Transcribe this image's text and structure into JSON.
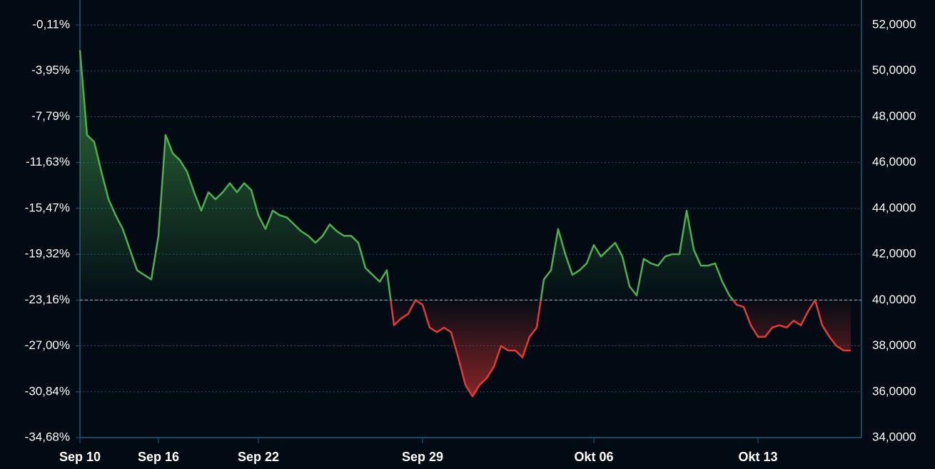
{
  "chart_data": {
    "type": "baseline-area",
    "categories": [
      "Sep 10",
      null,
      null,
      null,
      null,
      null,
      null,
      null,
      null,
      null,
      null,
      "Sep 16",
      null,
      null,
      null,
      null,
      null,
      null,
      null,
      null,
      null,
      null,
      null,
      null,
      null,
      "Sep 22",
      null,
      null,
      null,
      null,
      null,
      null,
      null,
      null,
      null,
      null,
      null,
      null,
      null,
      null,
      null,
      null,
      null,
      null,
      null,
      null,
      null,
      null,
      "Sep 29",
      null,
      null,
      null,
      null,
      null,
      null,
      null,
      null,
      null,
      null,
      null,
      null,
      null,
      null,
      null,
      null,
      null,
      null,
      null,
      null,
      null,
      null,
      null,
      "Okt 06",
      null,
      null,
      null,
      null,
      null,
      null,
      null,
      null,
      null,
      null,
      null,
      null,
      null,
      null,
      null,
      null,
      null,
      null,
      null,
      null,
      null,
      null,
      "Okt 13",
      null,
      null,
      null,
      null,
      null,
      null,
      null,
      null,
      null,
      null,
      null,
      null,
      null
    ],
    "series": [
      {
        "axis": "y2",
        "color_above": "#4caf50",
        "color_below": "#e53935",
        "values": [
          50.9,
          47.2,
          46.9,
          45.6,
          44.4,
          43.7,
          43.1,
          42.2,
          41.3,
          41.1,
          40.9,
          42.8,
          47.2,
          46.4,
          46.1,
          45.6,
          44.7,
          43.9,
          44.7,
          44.4,
          44.7,
          45.1,
          44.7,
          45.1,
          44.8,
          43.7,
          43.1,
          43.9,
          43.7,
          43.6,
          43.3,
          43.0,
          42.8,
          42.5,
          42.8,
          43.3,
          43.0,
          42.8,
          42.8,
          42.5,
          41.4,
          41.1,
          40.8,
          41.3,
          38.9,
          39.2,
          39.4,
          40.0,
          39.8,
          38.8,
          38.6,
          38.8,
          38.6,
          37.5,
          36.3,
          35.8,
          36.3,
          36.6,
          37.1,
          38.0,
          37.8,
          37.8,
          37.5,
          38.4,
          38.8,
          40.9,
          41.3,
          43.1,
          42.0,
          41.1,
          41.3,
          41.6,
          42.4,
          41.9,
          42.2,
          42.5,
          41.9,
          40.6,
          40.2,
          41.8,
          41.6,
          41.5,
          41.9,
          42.0,
          42.0,
          43.9,
          42.2,
          41.5,
          41.5,
          41.6,
          40.8,
          40.2,
          39.8,
          39.7,
          38.9,
          38.4,
          38.4,
          38.8,
          38.9,
          38.8,
          39.1,
          38.9,
          39.5,
          40.0,
          38.9,
          38.4,
          38.0,
          37.8,
          37.8
        ]
      }
    ],
    "baseline": 40,
    "ylim": [
      -34.68,
      -0.11
    ],
    "yticks": [
      {
        "value": -0.11,
        "label": "-0,11%"
      },
      {
        "value": -3.95,
        "label": "-3,95%"
      },
      {
        "value": -7.79,
        "label": "-7,79%"
      },
      {
        "value": -11.63,
        "label": "-11,63%"
      },
      {
        "value": -15.47,
        "label": "-15,47%"
      },
      {
        "value": -19.32,
        "label": "-19,32%"
      },
      {
        "value": -23.16,
        "label": "-23,16%"
      },
      {
        "value": -27.0,
        "label": "-27,00%"
      },
      {
        "value": -30.84,
        "label": "-30,84%"
      },
      {
        "value": -34.68,
        "label": "-34,68%"
      }
    ],
    "y2lim": [
      34,
      52
    ],
    "y2ticks": [
      {
        "value": 52,
        "label": "52,0000"
      },
      {
        "value": 50,
        "label": "50,0000"
      },
      {
        "value": 48,
        "label": "48,0000"
      },
      {
        "value": 46,
        "label": "46,0000"
      },
      {
        "value": 44,
        "label": "44,0000"
      },
      {
        "value": 42,
        "label": "42,0000"
      },
      {
        "value": 40,
        "label": "40,0000"
      },
      {
        "value": 38,
        "label": "38,0000"
      },
      {
        "value": 36,
        "label": "36,0000"
      },
      {
        "value": 34,
        "label": "34,0000"
      }
    ],
    "grid": true
  }
}
